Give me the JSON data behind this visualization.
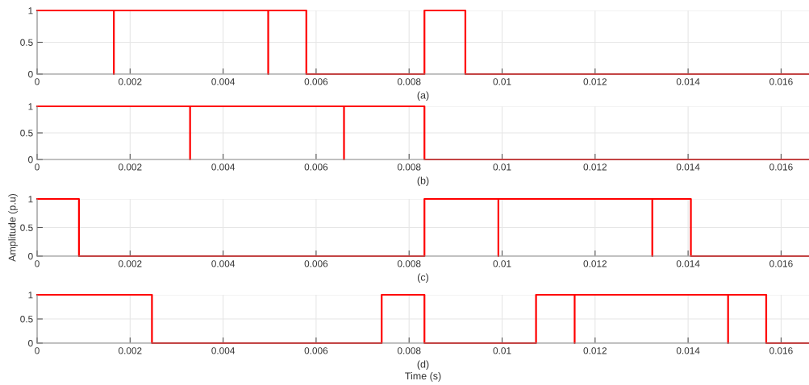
{
  "chart_data": [
    {
      "type": "line",
      "xlabel": "(a)",
      "x": [
        0,
        0.00165,
        0.00165,
        0.00165,
        0.00497,
        0.00497,
        0.00497,
        0.00579,
        0.00579,
        0.00833,
        0.00833,
        0.00921,
        0.00921,
        0.0166
      ],
      "series": [
        {
          "color": "#ff0000",
          "values": [
            1,
            1,
            0,
            1,
            1,
            0,
            1,
            1,
            0,
            0,
            1,
            1,
            0,
            0
          ]
        }
      ],
      "xlim": [
        0,
        0.0166
      ],
      "ylim": [
        0,
        1
      ],
      "xticks": [
        0,
        0.002,
        0.004,
        0.006,
        0.008,
        0.01,
        0.012,
        0.014,
        0.016
      ],
      "yticks": [
        0,
        0.5,
        1
      ],
      "grid": true
    },
    {
      "type": "line",
      "xlabel": "(b)",
      "x": [
        0,
        0.00329,
        0.00329,
        0.00329,
        0.0066,
        0.0066,
        0.0066,
        0.00833,
        0.00833,
        0.0166
      ],
      "series": [
        {
          "color": "#ff0000",
          "values": [
            1,
            1,
            0,
            1,
            1,
            0,
            1,
            1,
            0,
            0
          ]
        }
      ],
      "xlim": [
        0,
        0.0166
      ],
      "ylim": [
        0,
        1
      ],
      "xticks": [
        0,
        0.002,
        0.004,
        0.006,
        0.008,
        0.01,
        0.012,
        0.014,
        0.016
      ],
      "yticks": [
        0,
        0.5,
        1
      ],
      "grid": true
    },
    {
      "type": "line",
      "xlabel": "(c)",
      "ylabel": "Amplitude (p.u)",
      "x": [
        0,
        0.0009,
        0.0009,
        0.00833,
        0.00833,
        0.00992,
        0.00992,
        0.00992,
        0.01323,
        0.01323,
        0.01323,
        0.01406,
        0.01406,
        0.0166
      ],
      "series": [
        {
          "color": "#ff0000",
          "values": [
            1,
            1,
            0,
            0,
            1,
            1,
            0,
            1,
            1,
            0,
            1,
            1,
            0,
            0
          ]
        }
      ],
      "xlim": [
        0,
        0.0166
      ],
      "ylim": [
        0,
        1
      ],
      "xticks": [
        0,
        0.002,
        0.004,
        0.006,
        0.008,
        0.01,
        0.012,
        0.014,
        0.016
      ],
      "yticks": [
        0,
        0.5,
        1
      ],
      "grid": true
    },
    {
      "type": "line",
      "xlabel": "(d)",
      "annotations": [
        "Time (s)"
      ],
      "x": [
        0,
        0.00247,
        0.00247,
        0.00741,
        0.00741,
        0.00833,
        0.00833,
        0.01073,
        0.01073,
        0.01156,
        0.01156,
        0.01156,
        0.01486,
        0.01486,
        0.01486,
        0.01568,
        0.01568,
        0.0166
      ],
      "series": [
        {
          "color": "#ff0000",
          "values": [
            1,
            1,
            0,
            0,
            1,
            1,
            0,
            0,
            1,
            1,
            0,
            1,
            1,
            0,
            1,
            1,
            0,
            0
          ]
        }
      ],
      "xlim": [
        0,
        0.0166
      ],
      "ylim": [
        0,
        1
      ],
      "xticks": [
        0,
        0.002,
        0.004,
        0.006,
        0.008,
        0.01,
        0.012,
        0.014,
        0.016
      ],
      "yticks": [
        0,
        0.5,
        1
      ],
      "grid": true
    }
  ]
}
